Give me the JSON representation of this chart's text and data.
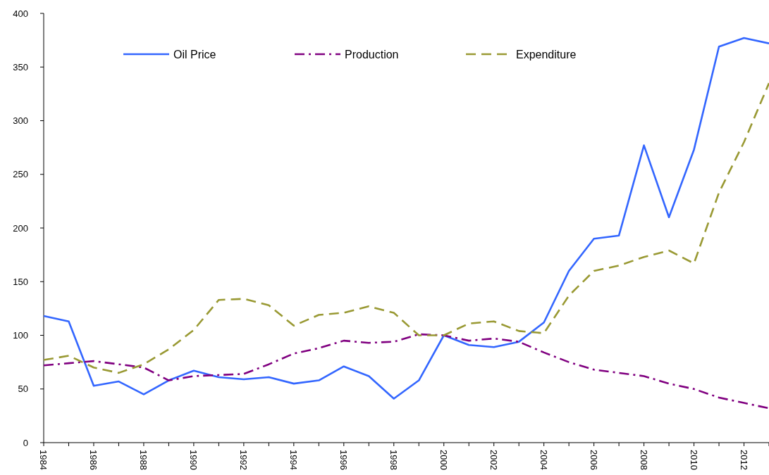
{
  "chart_data": {
    "type": "line",
    "categories": [
      "1984",
      null,
      "1986",
      null,
      "1988",
      null,
      "1990",
      null,
      "1992",
      null,
      "1994",
      null,
      "1996",
      null,
      "1998",
      null,
      "2000",
      null,
      "2002",
      null,
      "2004",
      null,
      "2006",
      null,
      "2008",
      null,
      "2010",
      null,
      "2012",
      null
    ],
    "series": [
      {
        "name": "Oil Price",
        "color": "#3366ff",
        "line_style": "solid",
        "values": [
          118,
          113,
          53,
          57,
          45,
          58,
          67,
          61,
          59,
          61,
          55,
          58,
          71,
          62,
          41,
          58,
          100,
          91,
          89,
          94,
          112,
          160,
          190,
          193,
          277,
          210,
          273,
          369,
          377,
          372
        ]
      },
      {
        "name": "Production",
        "color": "#800080",
        "line_style": "dashdot",
        "values": [
          72,
          74,
          76,
          73,
          70,
          58,
          62,
          63,
          64,
          73,
          83,
          88,
          95,
          93,
          94,
          101,
          100,
          95,
          97,
          94,
          84,
          75,
          68,
          65,
          62,
          55,
          50,
          42,
          37,
          32
        ]
      },
      {
        "name": "Expenditure",
        "color": "#999933",
        "line_style": "dashed",
        "values": [
          77,
          81,
          70,
          65,
          73,
          87,
          105,
          133,
          134,
          128,
          109,
          119,
          121,
          127,
          121,
          100,
          100,
          111,
          113,
          104,
          102,
          137,
          160,
          165,
          173,
          179,
          167,
          233,
          280,
          335
        ]
      }
    ],
    "ylim": [
      0,
      400
    ],
    "yticks": [
      0,
      50,
      100,
      150,
      200,
      250,
      300,
      350,
      400
    ],
    "legend": "top"
  }
}
